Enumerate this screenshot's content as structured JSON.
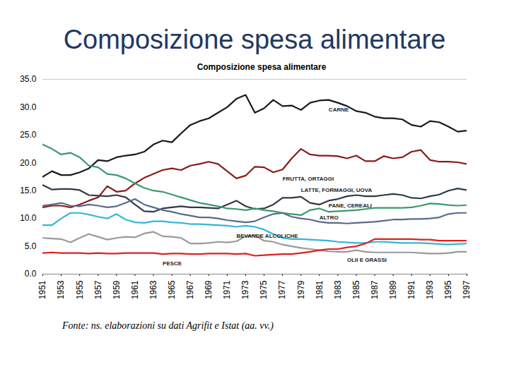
{
  "chart_data": {
    "type": "line",
    "title": "Composizione spesa alimentare",
    "subtitle": "Composizione spesa alimentare",
    "source": "Fonte: ns. elaborazioni su dati Agrifit e Istat (aa. vv.)",
    "x": [
      1951,
      1952,
      1953,
      1954,
      1955,
      1956,
      1957,
      1958,
      1959,
      1960,
      1961,
      1962,
      1963,
      1964,
      1965,
      1966,
      1967,
      1968,
      1969,
      1970,
      1971,
      1972,
      1973,
      1974,
      1975,
      1976,
      1977,
      1978,
      1979,
      1980,
      1981,
      1982,
      1983,
      1984,
      1985,
      1986,
      1987,
      1988,
      1989,
      1990,
      1991,
      1992,
      1993,
      1994,
      1995,
      1996,
      1997
    ],
    "xlim": [
      1951,
      1997
    ],
    "xticks": [
      1951,
      1953,
      1955,
      1957,
      1959,
      1961,
      1963,
      1965,
      1967,
      1969,
      1971,
      1973,
      1975,
      1977,
      1979,
      1981,
      1983,
      1985,
      1987,
      1989,
      1991,
      1993,
      1995,
      1997
    ],
    "ylim": [
      0,
      35
    ],
    "yticks": [
      {
        "value": 0,
        "label": "0.0"
      },
      {
        "value": 5,
        "label": "5.0"
      },
      {
        "value": 10,
        "label": "10.0"
      },
      {
        "value": 15,
        "label": "15.0"
      },
      {
        "value": 20,
        "label": "20.0"
      },
      {
        "value": 25,
        "label": "25.0"
      },
      {
        "value": 30,
        "label": "30.0"
      },
      {
        "value": 35,
        "label": "35.0"
      }
    ],
    "grid": false,
    "series": [
      {
        "name": "CARNE",
        "color": "#1a1a1a",
        "values": [
          17.5,
          18.5,
          17.8,
          17.8,
          18.3,
          19,
          20.5,
          20.3,
          21,
          21.3,
          21.5,
          22,
          23.3,
          24,
          23.7,
          25.3,
          26.8,
          27.5,
          28,
          29,
          30,
          31.5,
          32.2,
          29,
          29.8,
          31.3,
          30.2,
          30.3,
          29.5,
          30.8,
          31.2,
          31.3,
          30.8,
          30.2,
          29.3,
          29,
          28.3,
          28,
          28,
          27.8,
          26.8,
          26.5,
          27.5,
          27.3,
          26.5,
          25.6,
          25.8
        ]
      },
      {
        "name": "FRUTTA, ORTAGGI",
        "color": "#8b1a1a",
        "values": [
          12,
          12.3,
          12.3,
          12,
          12.5,
          13.2,
          13.8,
          15.8,
          14.8,
          15,
          16.3,
          17.3,
          18,
          18.7,
          19,
          18.7,
          19.5,
          19.8,
          20.2,
          19.8,
          18.5,
          17.2,
          17.7,
          19.3,
          19.2,
          18.3,
          18.8,
          20.8,
          22.5,
          21.5,
          21.3,
          21.3,
          21.2,
          20.8,
          21.3,
          20.3,
          20.3,
          21.2,
          20.8,
          21,
          22,
          22.3,
          20.5,
          20.2,
          20.2,
          20.1,
          19.8
        ]
      },
      {
        "name": "LATTE, FORMAGGI, UOVA",
        "color": "#2f3a45",
        "values": [
          16,
          15.2,
          15.3,
          15.3,
          15.1,
          14.2,
          14.1,
          14,
          14.2,
          13.8,
          12.5,
          11.3,
          11.2,
          11.8,
          12,
          12.2,
          12,
          12,
          11.9,
          11.8,
          12.5,
          13.2,
          12.2,
          11.7,
          11.8,
          12.5,
          13.7,
          13.7,
          13.9,
          12.8,
          12.5,
          13.2,
          13.5,
          14,
          14.2,
          14,
          14,
          14.2,
          14.4,
          14.2,
          13.7,
          13.6,
          14,
          14.3,
          15,
          15.4,
          15.1
        ]
      },
      {
        "name": "PANE, CEREALI",
        "color": "#3a9a6e",
        "values": [
          23.3,
          22.5,
          21.5,
          21.8,
          21,
          19.5,
          19.2,
          18,
          17.8,
          17.2,
          16.3,
          15.5,
          15,
          14.8,
          14.3,
          13.8,
          13.3,
          12.8,
          12.5,
          12.2,
          11.8,
          11.7,
          11.5,
          11.8,
          11.5,
          11.3,
          11,
          10.8,
          10.6,
          11.5,
          11.8,
          11.2,
          11.3,
          11.4,
          11.5,
          11.7,
          11.9,
          11.9,
          11.9,
          11.9,
          12,
          12.3,
          12.7,
          12.6,
          12.4,
          12.3,
          12.4
        ]
      },
      {
        "name": "ALTRO",
        "color": "#5a6a8c",
        "values": [
          12.3,
          12.5,
          12.8,
          12.3,
          12.2,
          12.5,
          12.3,
          12,
          12.2,
          12.8,
          13.5,
          12.5,
          12,
          11.5,
          11.2,
          10.8,
          10.5,
          10.2,
          10.2,
          10,
          9.7,
          9.5,
          9.3,
          9.5,
          10.2,
          10.8,
          11,
          10.3,
          10,
          9.8,
          9.4,
          9.2,
          9.2,
          9.1,
          9.2,
          9.3,
          9.4,
          9.6,
          9.8,
          9.8,
          9.9,
          9.9,
          10,
          10.2,
          10.8,
          11,
          11
        ]
      },
      {
        "name": "BEVANDE ALCOLICHE",
        "color": "#35b5d8",
        "values": [
          8.8,
          8.8,
          10,
          11,
          11,
          10.7,
          10.3,
          10,
          10.8,
          9.8,
          9.3,
          9.2,
          9.5,
          9.5,
          9.3,
          9.2,
          9,
          9,
          8.9,
          8.8,
          8.7,
          8.5,
          8.7,
          8.5,
          8,
          7.2,
          6.5,
          6.3,
          6.3,
          6.2,
          6.1,
          6,
          5.8,
          5.7,
          5.6,
          5.6,
          5.8,
          5.8,
          5.7,
          5.6,
          5.6,
          5.6,
          5.5,
          5.4,
          5.3,
          5.4,
          5.5
        ]
      },
      {
        "name": "OLII E GRASSI",
        "color": "#9a9a9a",
        "values": [
          6.5,
          6.4,
          6.3,
          5.7,
          6.5,
          7.2,
          6.7,
          6.2,
          6.5,
          6.7,
          6.6,
          7.3,
          7.6,
          6.8,
          6.7,
          6.5,
          5.5,
          5.5,
          5.6,
          5.8,
          5.7,
          5.9,
          6.8,
          7,
          6,
          5.8,
          5.3,
          5,
          4.7,
          4.5,
          4.3,
          4.1,
          4,
          4,
          4.3,
          4,
          3.9,
          3.9,
          3.9,
          3.9,
          3.9,
          3.8,
          3.7,
          3.7,
          3.8,
          4,
          4
        ]
      },
      {
        "name": "PESCE",
        "color": "#e02020",
        "values": [
          3.8,
          3.9,
          3.8,
          3.8,
          3.8,
          3.7,
          3.8,
          3.7,
          3.7,
          3.8,
          3.8,
          3.8,
          3.8,
          3.6,
          3.7,
          3.7,
          3.6,
          3.6,
          3.7,
          3.7,
          3.7,
          3.6,
          3.7,
          3.3,
          3.4,
          3.5,
          3.6,
          3.6,
          3.8,
          4,
          4.3,
          4.5,
          4.5,
          4.8,
          5,
          5.5,
          6.3,
          6.3,
          6.3,
          6.3,
          6.3,
          6.2,
          6.2,
          6,
          6,
          6,
          6
        ]
      }
    ]
  }
}
